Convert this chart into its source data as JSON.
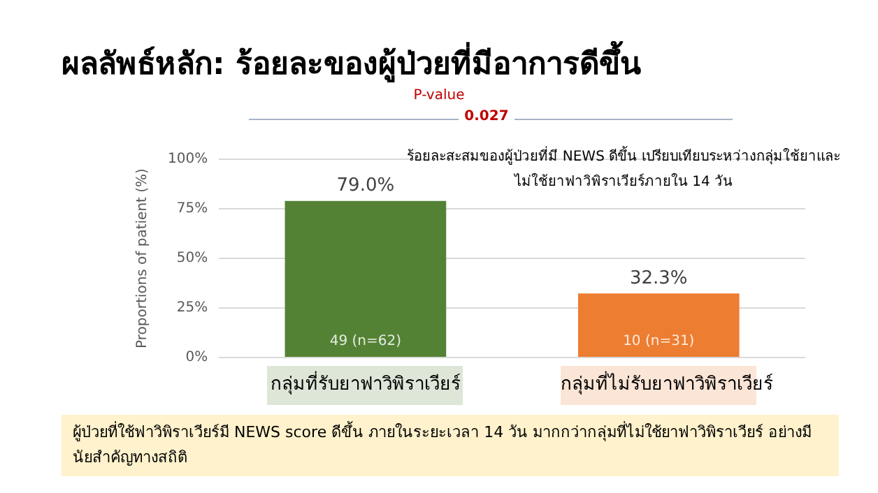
{
  "chart_data": {
    "type": "bar",
    "title": "ผลลัพธ์หลัก: ร้อยละของผู้ป่วยที่มีอาการดีขึ้น",
    "ylabel": "Proportions of patient (%)",
    "categories": [
      "กลุ่มที่รับยาฟาวิพิราเวียร์",
      "กลุ่มที่ไม่รับยาฟาวิพิราเวียร์"
    ],
    "series": [
      {
        "colors": [
          "#548235",
          "#ed7d31"
        ],
        "values": [
          79.0,
          32.3
        ],
        "value_labels": [
          "79.0%",
          "32.3%"
        ]
      }
    ],
    "ylim": [
      0,
      100
    ],
    "yticks": [
      {
        "value": 0,
        "label": "0%"
      },
      {
        "value": 25,
        "label": "25%"
      },
      {
        "value": 50,
        "label": "50%"
      },
      {
        "value": 75,
        "label": "75%"
      },
      {
        "value": 100,
        "label": "100%"
      }
    ],
    "grid": "y",
    "legend": false,
    "annotations": [
      "P-value",
      "0.027",
      "ร้อยละสะสมของผู้ป่วยที่มี NEWS ดีขึ้น เปรียบเทียบระหว่างกลุ่มใช้ยาและไม่ใช้ยาฟาวิพิราเวียร์ภายใน 14 วัน",
      "49 (n=62)",
      "10 (n=31)",
      "ผู้ป่วยที่ใช้ฟาวิพิราเวียร์มี NEWS score ดีขึ้น ภายในระยะเวลา 14 วัน มากกว่ากลุ่มที่ไม่ใช้ยาฟาวิพิราเวียร์ อย่างมีนัยสำคัญทางสถิติ"
    ]
  }
}
